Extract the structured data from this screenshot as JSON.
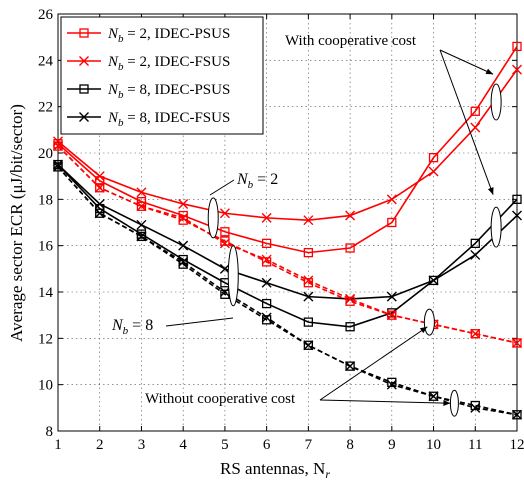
{
  "chart_data": {
    "type": "line",
    "xlabel": "RS antennas, N",
    "xlabel_sub": "r",
    "ylabel": "Average sector ECR (μJ/bit/sector)",
    "x": [
      1,
      2,
      3,
      4,
      5,
      6,
      7,
      8,
      9,
      10,
      11,
      12
    ],
    "xlim": [
      1,
      12
    ],
    "ylim": [
      8,
      26
    ],
    "xticks": [
      1,
      2,
      3,
      4,
      5,
      6,
      7,
      8,
      9,
      10,
      11,
      12
    ],
    "yticks": [
      8,
      10,
      12,
      14,
      16,
      18,
      20,
      22,
      24,
      26
    ],
    "grid": true,
    "legend_position": "top-left",
    "series": [
      {
        "name": "N_b = 2, IDEC-PSUS",
        "color": "#ff0000",
        "marker": "square",
        "dash": "solid",
        "group": "with",
        "values": [
          20.4,
          18.8,
          17.9,
          17.3,
          16.6,
          16.1,
          15.7,
          15.9,
          17.0,
          19.8,
          21.8,
          24.6
        ]
      },
      {
        "name": "N_b = 2, IDEC-FSUS",
        "color": "#ff0000",
        "marker": "x",
        "dash": "solid",
        "group": "with",
        "values": [
          20.5,
          19.0,
          18.3,
          17.8,
          17.4,
          17.2,
          17.1,
          17.3,
          18.0,
          19.2,
          21.1,
          23.6
        ]
      },
      {
        "name": "N_b = 8, IDEC-PSUS",
        "color": "#000000",
        "marker": "square",
        "dash": "solid",
        "group": "with",
        "values": [
          19.5,
          17.6,
          16.5,
          15.4,
          14.4,
          13.5,
          12.7,
          12.5,
          13.1,
          14.5,
          16.1,
          18.0
        ]
      },
      {
        "name": "N_b = 8, IDEC-FSUS",
        "color": "#000000",
        "marker": "x",
        "dash": "solid",
        "group": "with",
        "values": [
          19.5,
          17.8,
          16.9,
          16.0,
          15.0,
          14.4,
          13.8,
          13.7,
          13.8,
          14.5,
          15.6,
          17.3
        ]
      },
      {
        "color": "#ff0000",
        "marker": "square",
        "dash": "dashed",
        "group": "without",
        "values": [
          20.3,
          18.5,
          17.7,
          17.1,
          16.2,
          15.3,
          14.4,
          13.6,
          13.0,
          12.6,
          12.2,
          11.8
        ]
      },
      {
        "color": "#ff0000",
        "marker": "x",
        "dash": "dashed",
        "group": "without",
        "values": [
          20.3,
          18.5,
          17.7,
          17.2,
          16.1,
          15.4,
          14.5,
          13.7,
          13.0,
          12.6,
          12.2,
          11.8
        ]
      },
      {
        "color": "#000000",
        "marker": "square",
        "dash": "dashed",
        "group": "without",
        "values": [
          19.4,
          17.4,
          16.4,
          15.2,
          13.9,
          12.8,
          11.7,
          10.8,
          10.1,
          9.5,
          9.1,
          8.7
        ]
      },
      {
        "color": "#000000",
        "marker": "x",
        "dash": "dashed",
        "group": "without",
        "values": [
          19.4,
          17.4,
          16.4,
          15.3,
          14.0,
          12.9,
          11.7,
          10.8,
          10.0,
          9.5,
          9.0,
          8.7
        ]
      }
    ],
    "annotations": {
      "with_cost": "With cooperative cost",
      "without_cost": "Without cooperative cost",
      "nb2": "= 2",
      "nb8": "= 8"
    }
  }
}
